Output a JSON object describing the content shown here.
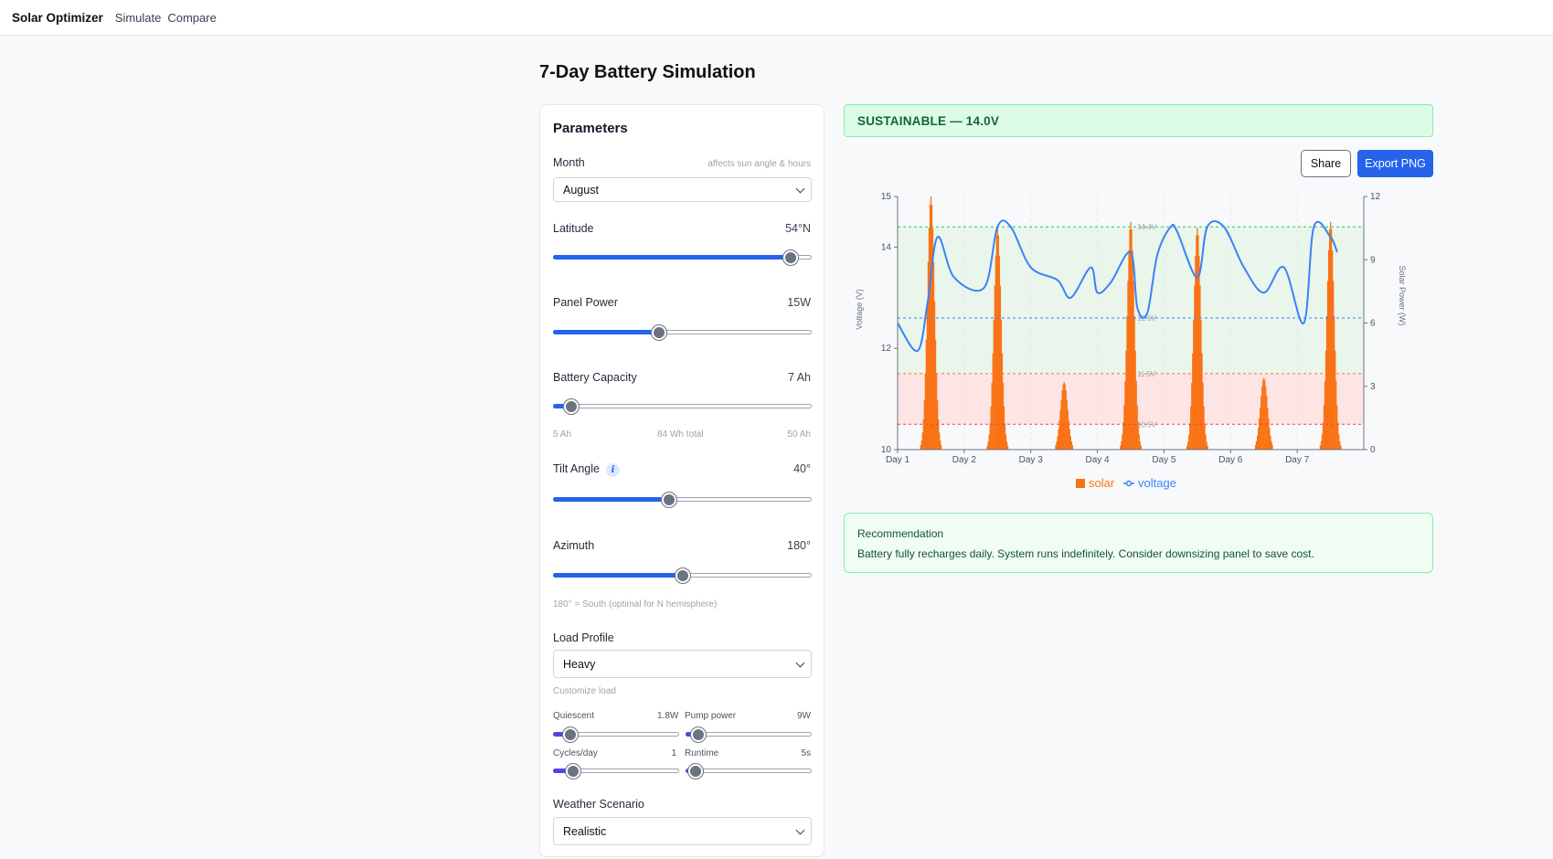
{
  "nav": {
    "brand": "Solar Optimizer",
    "links": [
      "Simulate",
      "Compare"
    ]
  },
  "page": {
    "title": "7-Day Battery Simulation"
  },
  "params": {
    "title": "Parameters",
    "month": {
      "label": "Month",
      "hint": "affects sun angle & hours",
      "value": "August"
    },
    "latitude": {
      "label": "Latitude",
      "value": "54°N",
      "level": 0.92
    },
    "panel_power": {
      "label": "Panel Power",
      "value": "15W",
      "level": 0.41
    },
    "battery_capacity": {
      "label": "Battery Capacity",
      "value": "7 Ah",
      "level": 0.07,
      "min_label": "5 Ah",
      "total_label": "84 Wh total",
      "max_label": "50 Ah"
    },
    "tilt": {
      "label": "Tilt Angle",
      "value": "40°",
      "level": 0.45
    },
    "azimuth": {
      "label": "Azimuth",
      "value": "180°",
      "level": 0.5,
      "hint": "180° = South (optimal for N hemisphere)"
    },
    "load_profile": {
      "label": "Load Profile",
      "value": "Heavy",
      "customize": "Customize load"
    },
    "quiescent": {
      "label": "Quiescent",
      "value": "1.8W",
      "level": 0.14
    },
    "pump_power": {
      "label": "Pump power",
      "value": "9W",
      "level": 0.1
    },
    "cycles": {
      "label": "Cycles/day",
      "value": "1",
      "level": 0.16
    },
    "runtime": {
      "label": "Runtime",
      "value": "5s",
      "level": 0.08
    },
    "weather": {
      "label": "Weather Scenario",
      "value": "Realistic"
    }
  },
  "status": {
    "text": "SUSTAINABLE — 14.0V"
  },
  "actions": {
    "share": "Share",
    "export": "Export PNG"
  },
  "recommendation": {
    "title": "Recommendation",
    "text": "Battery fully recharges daily. System runs indefinitely. Consider downsizing panel to save cost."
  },
  "colors": {
    "accent": "#2563eb",
    "solar": "#f97316",
    "voltage": "#3b82f6",
    "success": "#166534"
  },
  "chart_data": {
    "type": "line",
    "x_categories": [
      "Day 1",
      "Day 2",
      "Day 3",
      "Day 4",
      "Day 5",
      "Day 6",
      "Day 7"
    ],
    "y_left": {
      "label": "Voltage (V)",
      "ticks": [
        10,
        12,
        14,
        15
      ],
      "range": [
        10,
        15
      ]
    },
    "y_right": {
      "label": "Solar Power (W)",
      "ticks": [
        0,
        3,
        6,
        9,
        12
      ],
      "range": [
        0,
        12
      ]
    },
    "thresholds": [
      {
        "value": 14.4,
        "label": "14.4V",
        "color": "#22c55e"
      },
      {
        "value": 12.6,
        "label": "12.6V",
        "color": "#3b82f6"
      },
      {
        "value": 11.5,
        "label": "11.5V",
        "color": "#f97316"
      },
      {
        "value": 10.5,
        "label": "10.5V",
        "color": "#ef4444"
      }
    ],
    "solar_peaks": [
      12,
      10.5,
      3.2,
      10.8,
      10.5,
      3.4,
      10.8
    ],
    "voltage": [
      [
        0,
        12.5
      ],
      [
        0.3,
        11.95
      ],
      [
        0.45,
        12.9
      ],
      [
        0.6,
        14.2
      ],
      [
        0.85,
        13.4
      ],
      [
        1.3,
        13.2
      ],
      [
        1.5,
        14.4
      ],
      [
        1.7,
        14.4
      ],
      [
        2.0,
        13.6
      ],
      [
        2.4,
        13.35
      ],
      [
        2.6,
        13.0
      ],
      [
        2.9,
        13.6
      ],
      [
        3.0,
        13.1
      ],
      [
        3.2,
        13.3
      ],
      [
        3.5,
        13.9
      ],
      [
        3.6,
        12.8
      ],
      [
        3.75,
        12.7
      ],
      [
        3.9,
        13.85
      ],
      [
        4.1,
        14.4
      ],
      [
        4.2,
        14.3
      ],
      [
        4.5,
        13.4
      ],
      [
        4.65,
        14.4
      ],
      [
        4.9,
        14.4
      ],
      [
        5.2,
        13.6
      ],
      [
        5.5,
        13.1
      ],
      [
        5.8,
        13.6
      ],
      [
        6.1,
        12.5
      ],
      [
        6.25,
        14.4
      ],
      [
        6.5,
        14.2
      ],
      [
        6.6,
        13.9
      ]
    ],
    "legend": [
      "solar",
      "voltage"
    ]
  }
}
